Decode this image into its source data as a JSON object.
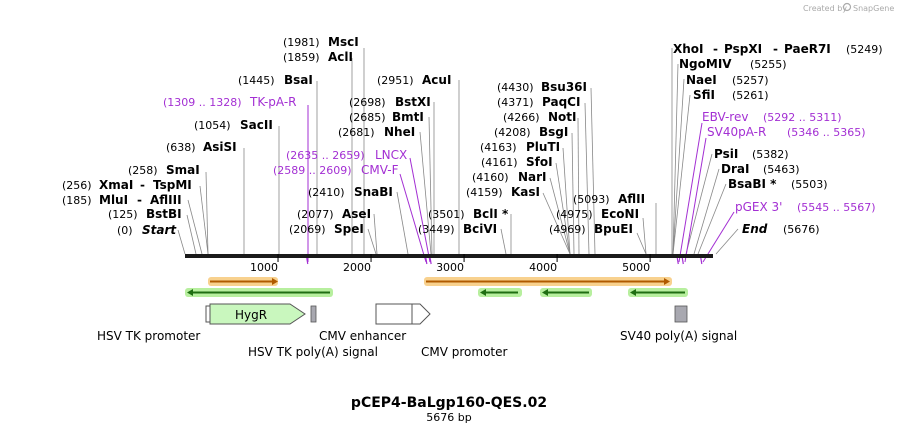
{
  "plasmid": {
    "name": "pCEP4-BaLgp160-QES.02",
    "length_label": "5676 bp",
    "length": 5676
  },
  "credit": {
    "prefix": "Created by",
    "brand": "SnapGene"
  },
  "ticks": [
    {
      "value": 1000,
      "label": "1000"
    },
    {
      "value": 2000,
      "label": "2000"
    },
    {
      "value": 3000,
      "label": "3000"
    },
    {
      "value": 4000,
      "label": "4000"
    },
    {
      "value": 5000,
      "label": "5000"
    }
  ],
  "sites_left": [
    {
      "pos": "(1981)",
      "name": "MscI",
      "bp": 1981
    },
    {
      "pos": "(1859)",
      "name": "AclI",
      "bp": 1859
    },
    {
      "pos": "(1445)",
      "name": "BsaI",
      "bp": 1445
    },
    {
      "pos": "(1054)",
      "name": "SacII",
      "bp": 1054
    },
    {
      "pos": "(638)",
      "name": "AsiSI",
      "bp": 638
    },
    {
      "pos": "(258)",
      "name": "SmaI",
      "bp": 258
    },
    {
      "pos": "(256)",
      "name": "XmaI",
      "name2": "TspMI",
      "bp": 256
    },
    {
      "pos": "(185)",
      "name": "MluI",
      "name2": "AflIII",
      "bp": 185
    },
    {
      "pos": "(125)",
      "name": "BstBI",
      "bp": 125
    },
    {
      "pos": "(0)",
      "name": "Start",
      "bp": 0
    }
  ],
  "sites_mid": [
    {
      "pos": "(2951)",
      "name": "AcuI",
      "bp": 2951
    },
    {
      "pos": "(2698)",
      "name": "BstXI",
      "bp": 2698
    },
    {
      "pos": "(2685)",
      "name": "BmtI",
      "bp": 2685
    },
    {
      "pos": "(2681)",
      "name": "NheI",
      "bp": 2681
    },
    {
      "pos": "(2410)",
      "name": "SnaBI",
      "bp": 2410
    },
    {
      "pos": "(2077)",
      "name": "AseI",
      "bp": 2077
    },
    {
      "pos": "(2069)",
      "name": "SpeI",
      "bp": 2069
    },
    {
      "pos": "(3501)",
      "name": "BclI *",
      "bp": 3501
    },
    {
      "pos": "(3449)",
      "name": "BciVI",
      "bp": 3449
    }
  ],
  "sites_right": [
    {
      "pos": "(4430)",
      "name": "Bsu36I",
      "bp": 4430
    },
    {
      "pos": "(4371)",
      "name": "PaqCI",
      "bp": 4371
    },
    {
      "pos": "(4266)",
      "name": "NotI",
      "bp": 4266
    },
    {
      "pos": "(4208)",
      "name": "BsgI",
      "bp": 4208
    },
    {
      "pos": "(4163)",
      "name": "PluTI",
      "bp": 4163
    },
    {
      "pos": "(4161)",
      "name": "SfoI",
      "bp": 4161
    },
    {
      "pos": "(4160)",
      "name": "NarI",
      "bp": 4160
    },
    {
      "pos": "(4159)",
      "name": "KasI",
      "bp": 4159
    },
    {
      "pos": "(5093)",
      "name": "AflII",
      "bp": 5093
    },
    {
      "pos": "(4975)",
      "name": "EcoNI",
      "bp": 4975
    },
    {
      "pos": "(4969)",
      "name": "BpuEI",
      "bp": 4969
    }
  ],
  "sites_far": [
    {
      "name": "XhoI",
      "name2": "PspXI",
      "name3": "PaeR7I",
      "pos": "(5249)",
      "bp": 5249
    },
    {
      "name": "NgoMIV",
      "pos": "(5255)",
      "bp": 5255
    },
    {
      "name": "NaeI",
      "pos": "(5257)",
      "bp": 5257
    },
    {
      "name": "SfiI",
      "pos": "(5261)",
      "bp": 5261
    },
    {
      "name": "PsiI",
      "pos": "(5382)",
      "bp": 5382
    },
    {
      "name": "DraI",
      "pos": "(5463)",
      "bp": 5463
    },
    {
      "name": "BsaBI *",
      "pos": "(5503)",
      "bp": 5503
    },
    {
      "name": "End",
      "pos": "(5676)",
      "bp": 5676
    }
  ],
  "primers": [
    {
      "range": "(1309 .. 1328)",
      "name": "TK-pA-R",
      "bp": 1309
    },
    {
      "range": "(2635 .. 2659)",
      "name": "LNCX",
      "bp": 2635
    },
    {
      "range": "(2589 .. 2609)",
      "name": "CMV-F",
      "bp": 2589
    },
    {
      "range": "(5292 .. 5311)",
      "name": "EBV-rev",
      "bp": 5292
    },
    {
      "range": "(5346 .. 5365)",
      "name": "SV40pA-R",
      "bp": 5346
    },
    {
      "range": "(5545 .. 5567)",
      "name": "pGEX 3'",
      "bp": 5545
    }
  ],
  "features": [
    {
      "name": "HSV TK promoter"
    },
    {
      "name": "HygR"
    },
    {
      "name": "HSV TK poly(A) signal"
    },
    {
      "name": "CMV enhancer"
    },
    {
      "name": "CMV promoter"
    },
    {
      "name": "SV40 poly(A) signal"
    }
  ],
  "colors": {
    "primer": "#a32fd3",
    "orf_fill": "#b05a00",
    "orf_glow": "#f7c97a",
    "green_fill": "#1f6e12",
    "green_glow": "#b7ef9e",
    "hygr_fill": "#c9f7be",
    "gray_box": "#a8a8b0"
  }
}
